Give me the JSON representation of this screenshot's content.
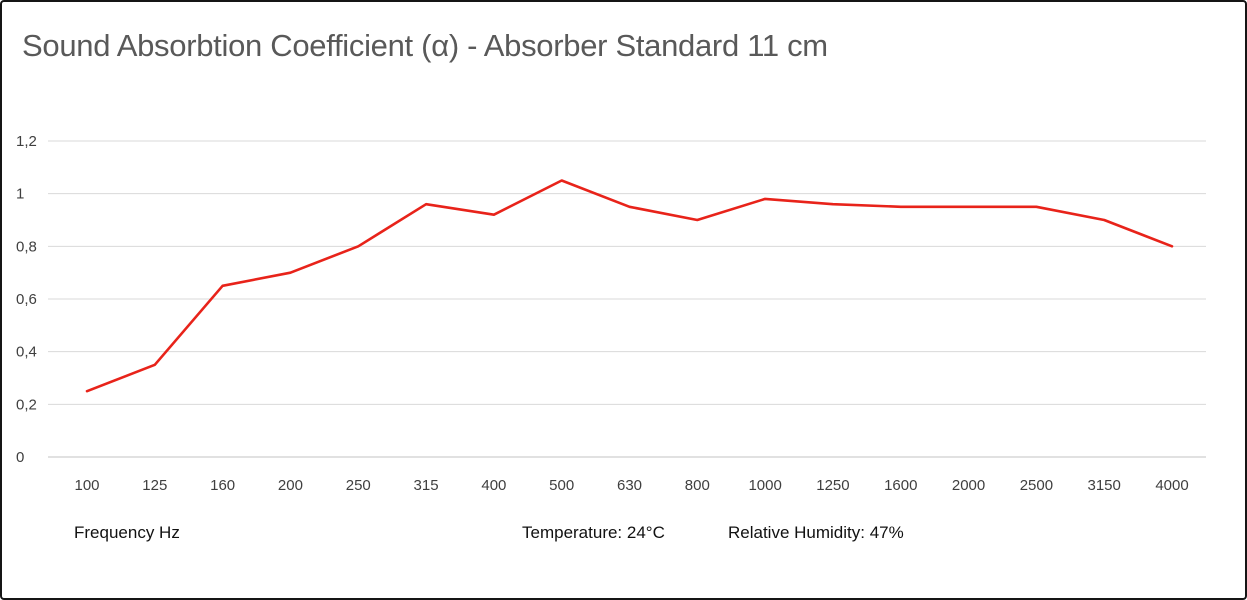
{
  "title": "Sound Absorbtion Coefficient (α) - Absorber Standard 11 cm",
  "footer": {
    "x_axis_title": "Frequency Hz",
    "temperature": "Temperature: 24°C",
    "humidity": "Relative Humidity: 47%"
  },
  "chart_data": {
    "type": "line",
    "title": "Sound Absorbtion Coefficient (α) - Absorber Standard 11 cm",
    "categories": [
      "100",
      "125",
      "160",
      "200",
      "250",
      "315",
      "400",
      "500",
      "630",
      "800",
      "1000",
      "1250",
      "1600",
      "2000",
      "2500",
      "3150",
      "4000"
    ],
    "values": [
      0.25,
      0.35,
      0.65,
      0.7,
      0.8,
      0.96,
      0.92,
      1.05,
      0.95,
      0.9,
      0.98,
      0.96,
      0.95,
      0.95,
      0.95,
      0.9,
      0.8
    ],
    "xlabel": "Frequency Hz",
    "ylabel": "",
    "ylim": [
      0,
      1.2
    ],
    "y_ticks": [
      {
        "v": 0,
        "label": "0"
      },
      {
        "v": 0.2,
        "label": "0,2"
      },
      {
        "v": 0.4,
        "label": "0,4"
      },
      {
        "v": 0.6,
        "label": "0,6"
      },
      {
        "v": 0.8,
        "label": "0,8"
      },
      {
        "v": 1,
        "label": "1"
      },
      {
        "v": 1.2,
        "label": "1,2"
      }
    ],
    "grid": true,
    "legend": "none",
    "line_color": "#e8231a",
    "gridline_color": "#d9d9d9",
    "axis_line_color": "#c3c3c3",
    "tick_label_color": "#3f3f3f",
    "title_color": "#595959"
  }
}
